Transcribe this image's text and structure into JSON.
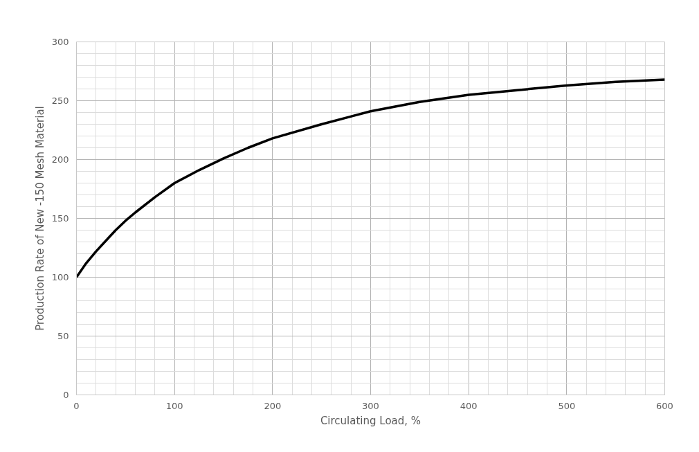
{
  "chart_data": {
    "type": "line",
    "xlabel": "Circulating Load, %",
    "ylabel": "Production Rate of New -150 Mesh Material",
    "x": [
      0,
      10,
      20,
      30,
      40,
      50,
      60,
      80,
      100,
      125,
      150,
      175,
      200,
      250,
      300,
      350,
      400,
      450,
      500,
      550,
      600
    ],
    "series": [
      {
        "color": "#000000",
        "values": [
          100,
          112,
          122,
          131,
          140,
          148,
          155,
          168,
          180,
          191,
          201,
          210,
          218,
          230,
          241,
          249,
          255,
          259,
          263,
          266,
          268
        ]
      }
    ],
    "xlim": [
      0,
      600
    ],
    "ylim": [
      0,
      300
    ],
    "xticks": [
      0,
      100,
      200,
      300,
      400,
      500,
      600
    ],
    "yticks": [
      0,
      50,
      100,
      150,
      200,
      250,
      300
    ],
    "grid": true,
    "marker": "none",
    "line_style": "solid"
  }
}
